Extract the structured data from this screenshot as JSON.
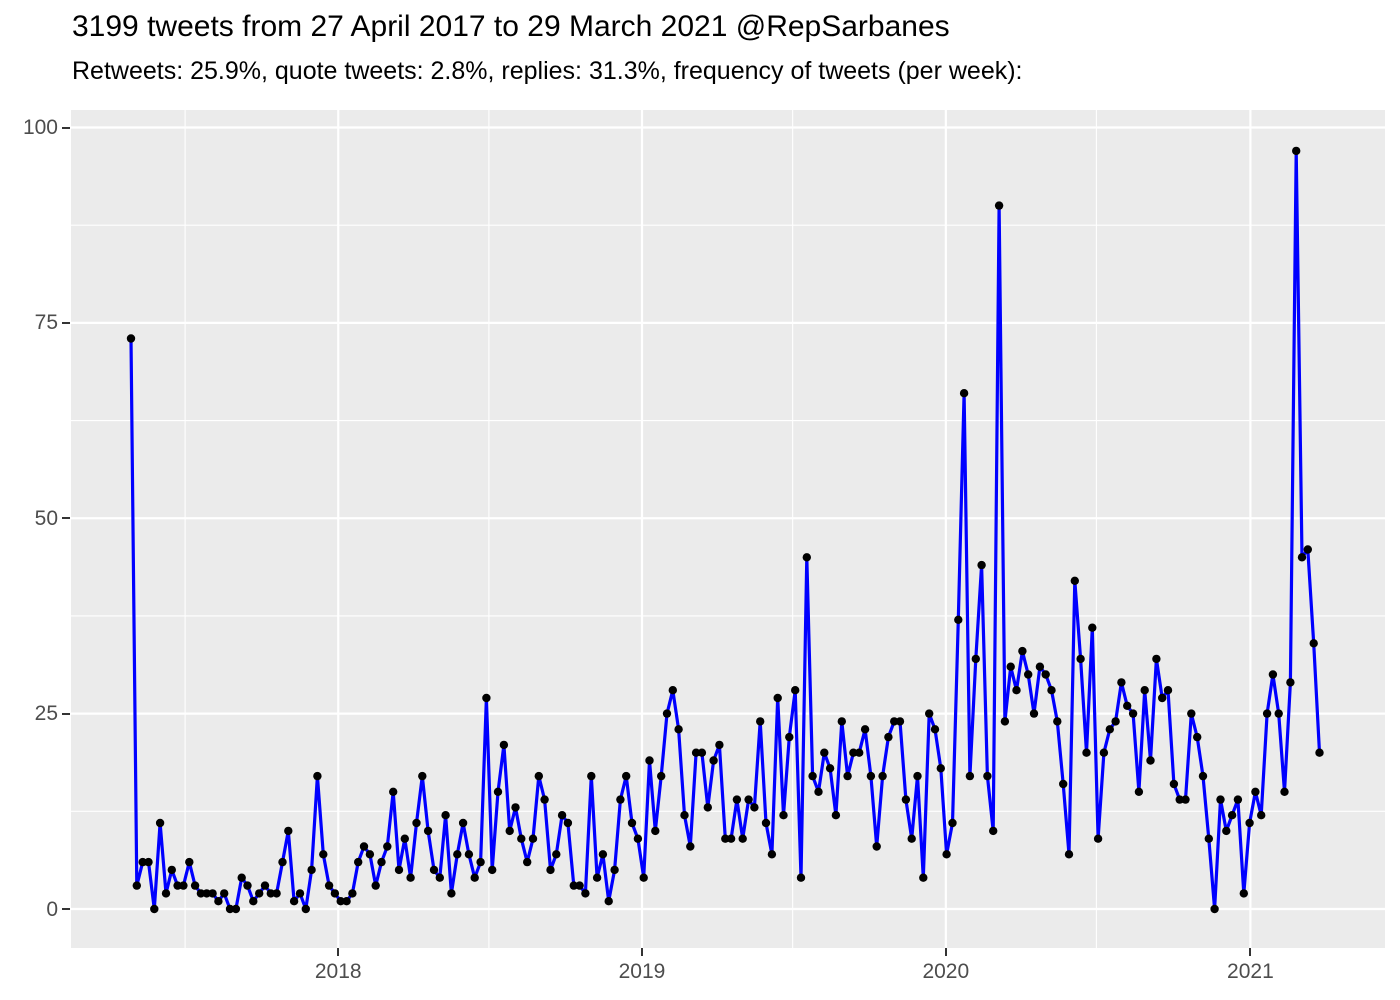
{
  "title": "3199 tweets from 27 April 2017 to 29 March 2021 @RepSarbanes",
  "subtitle": "Retweets: 25.9%, quote tweets: 2.8%, replies: 31.3%, frequency of tweets (per week):",
  "chart_data": {
    "type": "line",
    "title": "3199 tweets from 27 April 2017 to 29 March 2021 @RepSarbanes",
    "subtitle": "Retweets: 25.9%, quote tweets: 2.8%, replies: 31.3%, frequency of tweets (per week):",
    "series_name": "tweets per week",
    "x_unit": "weekly bins starting 27 April 2017",
    "xlabel": "",
    "ylabel": "",
    "ylim": [
      0,
      100
    ],
    "y_ticks": [
      0,
      25,
      50,
      75,
      100
    ],
    "y_minor": [
      12.5,
      37.5,
      62.5,
      87.5
    ],
    "x_ticks": [
      {
        "label": "2018",
        "week": 35.57
      },
      {
        "label": "2019",
        "week": 87.71
      },
      {
        "label": "2020",
        "week": 139.86
      },
      {
        "label": "2021",
        "week": 192.14
      }
    ],
    "x_minor_weeks": [
      9.29,
      61.43,
      113.57,
      165.71
    ],
    "grid": "on",
    "legend_position": "none",
    "line_color": "#0000FF",
    "point_color": "#000000",
    "panel_bg": "#EBEBEB",
    "grid_color": "#FFFFFF",
    "axis_text_color": "#4D4D4D",
    "values": [
      73,
      3,
      6,
      6,
      0,
      11,
      2,
      5,
      3,
      3,
      6,
      3,
      2,
      2,
      2,
      1,
      2,
      0,
      0,
      4,
      3,
      1,
      2,
      3,
      2,
      2,
      6,
      10,
      1,
      2,
      0,
      5,
      17,
      7,
      3,
      2,
      1,
      1,
      2,
      6,
      8,
      7,
      3,
      6,
      8,
      15,
      5,
      9,
      4,
      11,
      17,
      10,
      5,
      4,
      12,
      2,
      7,
      11,
      7,
      4,
      6,
      27,
      5,
      15,
      21,
      10,
      13,
      9,
      6,
      9,
      17,
      14,
      5,
      7,
      12,
      11,
      3,
      3,
      2,
      17,
      4,
      7,
      1,
      5,
      14,
      17,
      11,
      9,
      4,
      19,
      10,
      17,
      25,
      28,
      23,
      12,
      8,
      20,
      20,
      13,
      19,
      21,
      9,
      9,
      14,
      9,
      14,
      13,
      24,
      11,
      7,
      27,
      12,
      22,
      28,
      4,
      45,
      17,
      15,
      20,
      18,
      12,
      24,
      17,
      20,
      20,
      23,
      17,
      8,
      17,
      22,
      24,
      24,
      14,
      9,
      17,
      4,
      25,
      23,
      18,
      7,
      11,
      37,
      66,
      17,
      32,
      44,
      17,
      10,
      90,
      24,
      31,
      28,
      33,
      30,
      25,
      31,
      30,
      28,
      24,
      16,
      7,
      42,
      32,
      20,
      36,
      9,
      20,
      23,
      24,
      29,
      26,
      25,
      15,
      28,
      19,
      32,
      27,
      28,
      16,
      14,
      14,
      25,
      22,
      17,
      9,
      0,
      14,
      10,
      12,
      14,
      2,
      11,
      15,
      12,
      25,
      30,
      25,
      15,
      29,
      97,
      45,
      46,
      34,
      20
    ]
  }
}
